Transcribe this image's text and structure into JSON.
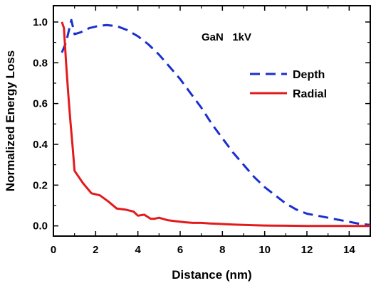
{
  "chart_data": {
    "type": "line",
    "title": "",
    "annotation": "GaN   1kV",
    "xlabel": "Distance (nm)",
    "ylabel": "Normalized Energy Loss",
    "xlim": [
      0,
      15
    ],
    "ylim": [
      -0.05,
      1.08
    ],
    "x_ticks": [
      0,
      2,
      4,
      6,
      8,
      10,
      12,
      14
    ],
    "x_tick_labels": [
      "0",
      "2",
      "4",
      "6",
      "8",
      "10",
      "12",
      "14"
    ],
    "y_ticks": [
      0.0,
      0.2,
      0.4,
      0.6,
      0.8,
      1.0
    ],
    "y_tick_labels": [
      "0.0",
      "0.2",
      "0.4",
      "0.6",
      "0.8",
      "1.0"
    ],
    "grid": false,
    "legend_position": "right",
    "series": [
      {
        "name": "Depth",
        "color": "#1a2fcf",
        "dash": "dashed",
        "x": [
          0.4,
          0.6,
          0.85,
          1.0,
          1.3,
          1.7,
          2.1,
          2.5,
          3.0,
          3.5,
          4.0,
          4.5,
          5.0,
          5.5,
          6.0,
          6.5,
          7.0,
          7.5,
          8.0,
          8.5,
          9.0,
          9.5,
          10.0,
          10.5,
          11.0,
          11.5,
          12.0,
          12.5,
          13.0,
          13.5,
          14.0,
          14.5,
          15.0
        ],
        "y": [
          0.85,
          0.9,
          1.01,
          0.94,
          0.95,
          0.97,
          0.98,
          0.985,
          0.98,
          0.96,
          0.93,
          0.89,
          0.84,
          0.78,
          0.72,
          0.65,
          0.58,
          0.5,
          0.43,
          0.36,
          0.3,
          0.24,
          0.19,
          0.15,
          0.11,
          0.08,
          0.06,
          0.05,
          0.04,
          0.03,
          0.02,
          0.01,
          0.005
        ]
      },
      {
        "name": "Radial",
        "color": "#e31a1c",
        "dash": "solid",
        "x": [
          0.4,
          0.5,
          0.6,
          0.7,
          0.8,
          0.9,
          1.0,
          1.4,
          1.8,
          2.2,
          2.6,
          3.0,
          3.4,
          3.8,
          4.0,
          4.3,
          4.6,
          4.8,
          5.0,
          5.4,
          5.8,
          6.2,
          6.6,
          7.0,
          7.4,
          7.8,
          8.2,
          8.6,
          9.0,
          9.5,
          10.0,
          11.0,
          12.0,
          13.0,
          14.0,
          15.0
        ],
        "y": [
          1.0,
          0.97,
          0.8,
          0.65,
          0.52,
          0.4,
          0.27,
          0.21,
          0.16,
          0.15,
          0.12,
          0.085,
          0.08,
          0.07,
          0.05,
          0.055,
          0.035,
          0.035,
          0.04,
          0.028,
          0.023,
          0.018,
          0.015,
          0.015,
          0.012,
          0.01,
          0.008,
          0.006,
          0.005,
          0.003,
          0.002,
          0.001,
          0.0,
          0.0,
          0.0,
          0.0
        ]
      }
    ]
  }
}
